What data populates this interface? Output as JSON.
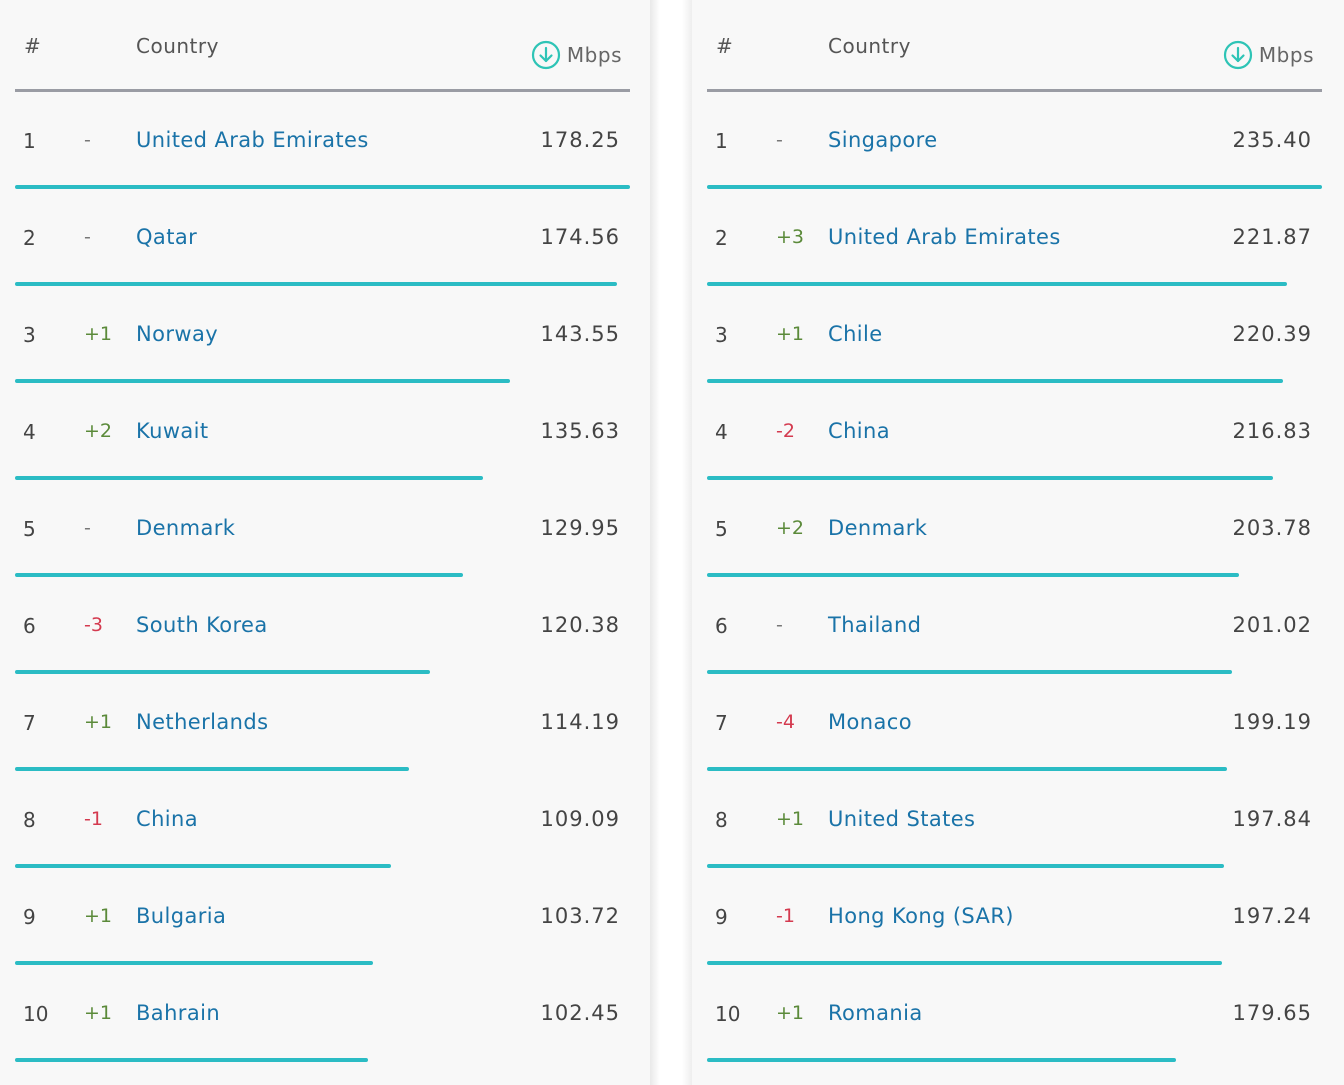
{
  "colors": {
    "bar": "#2bbcc4",
    "link": "#1a73a8",
    "up": "#5b8a3a",
    "down": "#d43a4f"
  },
  "tables": [
    {
      "header": {
        "rank": "#",
        "country": "Country",
        "unit": "Mbps",
        "icon": "download-arrow-icon"
      },
      "rows": [
        {
          "rank": "1",
          "change": "-",
          "country": "United Arab Emirates",
          "value": "178.25"
        },
        {
          "rank": "2",
          "change": "-",
          "country": "Qatar",
          "value": "174.56"
        },
        {
          "rank": "3",
          "change": "+1",
          "country": "Norway",
          "value": "143.55"
        },
        {
          "rank": "4",
          "change": "+2",
          "country": "Kuwait",
          "value": "135.63"
        },
        {
          "rank": "5",
          "change": "-",
          "country": "Denmark",
          "value": "129.95"
        },
        {
          "rank": "6",
          "change": "-3",
          "country": "South Korea",
          "value": "120.38"
        },
        {
          "rank": "7",
          "change": "+1",
          "country": "Netherlands",
          "value": "114.19"
        },
        {
          "rank": "8",
          "change": "-1",
          "country": "China",
          "value": "109.09"
        },
        {
          "rank": "9",
          "change": "+1",
          "country": "Bulgaria",
          "value": "103.72"
        },
        {
          "rank": "10",
          "change": "+1",
          "country": "Bahrain",
          "value": "102.45"
        }
      ]
    },
    {
      "header": {
        "rank": "#",
        "country": "Country",
        "unit": "Mbps",
        "icon": "download-arrow-icon"
      },
      "rows": [
        {
          "rank": "1",
          "change": "-",
          "country": "Singapore",
          "value": "235.40"
        },
        {
          "rank": "2",
          "change": "+3",
          "country": "United Arab Emirates",
          "value": "221.87"
        },
        {
          "rank": "3",
          "change": "+1",
          "country": "Chile",
          "value": "220.39"
        },
        {
          "rank": "4",
          "change": "-2",
          "country": "China",
          "value": "216.83"
        },
        {
          "rank": "5",
          "change": "+2",
          "country": "Denmark",
          "value": "203.78"
        },
        {
          "rank": "6",
          "change": "-",
          "country": "Thailand",
          "value": "201.02"
        },
        {
          "rank": "7",
          "change": "-4",
          "country": "Monaco",
          "value": "199.19"
        },
        {
          "rank": "8",
          "change": "+1",
          "country": "United States",
          "value": "197.84"
        },
        {
          "rank": "9",
          "change": "-1",
          "country": "Hong Kong (SAR)",
          "value": "197.24"
        },
        {
          "rank": "10",
          "change": "+1",
          "country": "Romania",
          "value": "179.65"
        }
      ]
    }
  ]
}
